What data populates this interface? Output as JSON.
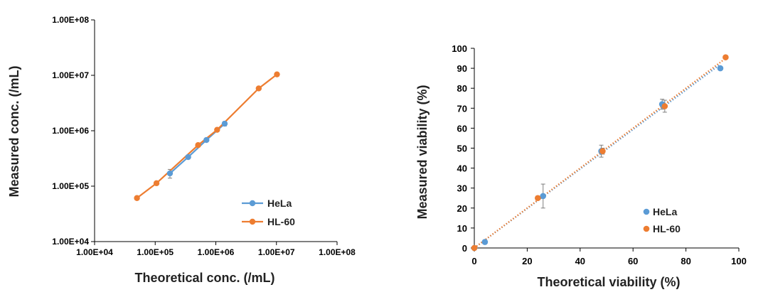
{
  "colors": {
    "hela": "#5B9BD5",
    "hl60": "#ED7D31",
    "axis": "#000000",
    "errorbar": "#7f7f7f"
  },
  "chart_data": [
    {
      "type": "line",
      "title": "",
      "xlabel": "Theoretical conc. (/mL)",
      "ylabel": "Measured conc.  (/mL)",
      "x_scale": "log",
      "y_scale": "log",
      "xlim": [
        10000,
        100000000
      ],
      "ylim": [
        10000,
        100000000
      ],
      "xticks": [
        10000,
        100000,
        1000000,
        10000000,
        100000000
      ],
      "yticks": [
        10000,
        100000,
        1000000,
        10000000,
        100000000
      ],
      "xtick_labels": [
        "1.00E+04",
        "1.00E+05",
        "1.00E+06",
        "1.00E+07",
        "1.00E+08"
      ],
      "ytick_labels": [
        "1.00E+04",
        "1.00E+05",
        "1.00E+06",
        "1.00E+07",
        "1.00E+08"
      ],
      "grid": false,
      "legend_position": "bottom-right",
      "series": [
        {
          "name": "HeLa",
          "color": "#5B9BD5",
          "x": [
            175000,
            350000,
            700000,
            1400000
          ],
          "y": [
            170000,
            335000,
            680000,
            1340000
          ],
          "err": [
            0.18,
            0.03,
            0.04,
            0.09
          ]
        },
        {
          "name": "HL-60",
          "color": "#ED7D31",
          "x": [
            50000,
            105000,
            510000,
            1050000,
            5100000,
            10200000
          ],
          "y": [
            61000,
            113000,
            550000,
            1040000,
            5800000,
            10400000
          ],
          "err": [
            0,
            0,
            0,
            0,
            0,
            0
          ]
        }
      ]
    },
    {
      "type": "scatter",
      "title": "",
      "xlabel": "Theoretical viability (%)",
      "ylabel": "Measured viability (%)",
      "xlim": [
        0,
        100
      ],
      "ylim": [
        0,
        100
      ],
      "xticks": [
        0,
        20,
        40,
        60,
        80,
        100
      ],
      "yticks": [
        0,
        10,
        20,
        30,
        40,
        50,
        60,
        70,
        80,
        90,
        100
      ],
      "grid": false,
      "legend_position": "bottom-right",
      "trendlines": "dotted linear fit per series",
      "series": [
        {
          "name": "HeLa",
          "color": "#5B9BD5",
          "x": [
            0,
            4,
            26,
            48,
            71,
            93
          ],
          "y": [
            0,
            3,
            26,
            48.5,
            72,
            90
          ],
          "err": [
            0,
            1,
            6,
            3,
            2.5,
            0
          ],
          "fit": [
            [
              0,
              0
            ],
            [
              93,
              92
            ]
          ]
        },
        {
          "name": "HL-60",
          "color": "#ED7D31",
          "x": [
            0,
            24,
            48.5,
            72,
            95
          ],
          "y": [
            0,
            25,
            48.5,
            71,
            95.5
          ],
          "err": [
            0,
            1,
            1.5,
            3,
            0
          ],
          "fit": [
            [
              0,
              0
            ],
            [
              95,
              95
            ]
          ]
        }
      ]
    }
  ]
}
